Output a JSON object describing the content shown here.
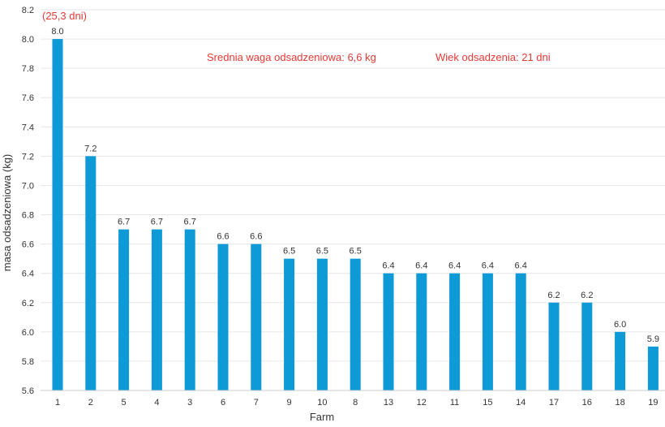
{
  "chart_data": {
    "type": "bar",
    "categories": [
      "1",
      "2",
      "5",
      "4",
      "3",
      "6",
      "7",
      "9",
      "10",
      "8",
      "13",
      "12",
      "11",
      "15",
      "14",
      "17",
      "16",
      "18",
      "19"
    ],
    "values": [
      8.0,
      7.2,
      6.7,
      6.7,
      6.7,
      6.6,
      6.6,
      6.5,
      6.5,
      6.5,
      6.4,
      6.4,
      6.4,
      6.4,
      6.4,
      6.2,
      6.2,
      6.0,
      5.9
    ],
    "data_labels": [
      "8.0",
      "7.2",
      "6.7",
      "6.7",
      "6.7",
      "6.6",
      "6.6",
      "6.5",
      "6.5",
      "6.5",
      "6.4",
      "6.4",
      "6.4",
      "6.4",
      "6.4",
      "6.2",
      "6.2",
      "6.0",
      "5.9"
    ],
    "xlabel": "Farm",
    "ylabel": "masa odsadzeniowa (kg)",
    "ylim": [
      5.6,
      8.2
    ],
    "yticks": [
      "5.6",
      "5.8",
      "6.0",
      "6.2",
      "6.4",
      "6.6",
      "6.8",
      "7.0",
      "7.2",
      "7.4",
      "7.6",
      "7.8",
      "8.0",
      "8.2"
    ],
    "grid": true,
    "legend": "none",
    "bar_color": "#0e9ad6",
    "annotations": [
      {
        "text": "(25,3 dni)",
        "color": "#e53935"
      },
      {
        "text": "Srednia waga odsadzeniowa: 6,6 kg",
        "color": "#e53935"
      },
      {
        "text": "Wiek odsadzenia: 21 dni",
        "color": "#e53935"
      }
    ]
  }
}
